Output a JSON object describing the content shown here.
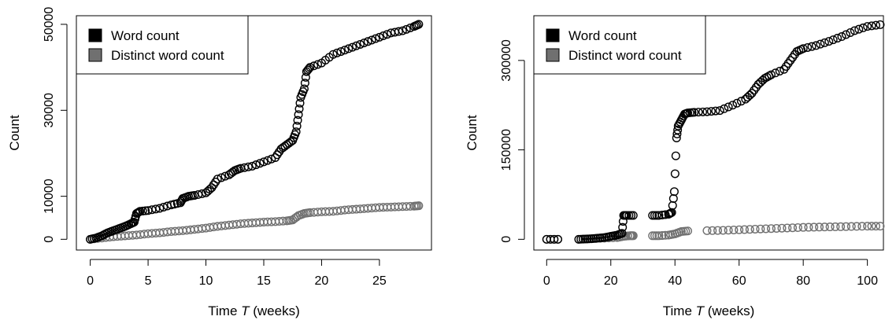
{
  "chart_data": [
    {
      "type": "scatter",
      "xlabel_prefix": "Time ",
      "xlabel_var": "T",
      "xlabel_suffix": " (weeks)",
      "ylabel": "Count",
      "xlim": [
        -1.2,
        29.5
      ],
      "ylim": [
        -2500,
        52000
      ],
      "xticks": [
        0,
        5,
        10,
        15,
        20,
        25
      ],
      "yticks": [
        0,
        10000,
        30000,
        50000
      ],
      "ytick_labels": [
        "0",
        "10000",
        "30000",
        "50000"
      ],
      "grid": false,
      "legend_position": "top-left",
      "series": [
        {
          "name": "Word count",
          "color": "#000000",
          "points": [
            [
              0.0,
              0
            ],
            [
              0.5,
              300
            ],
            [
              1.0,
              800
            ],
            [
              1.5,
              1500
            ],
            [
              2.0,
              2000
            ],
            [
              2.5,
              2500
            ],
            [
              3.0,
              3000
            ],
            [
              3.5,
              3600
            ],
            [
              3.8,
              4000
            ],
            [
              4.0,
              6000
            ],
            [
              4.3,
              6500
            ],
            [
              5.0,
              6700
            ],
            [
              6.0,
              7200
            ],
            [
              7.0,
              8000
            ],
            [
              7.8,
              8500
            ],
            [
              8.0,
              9500
            ],
            [
              8.5,
              10000
            ],
            [
              9.0,
              10200
            ],
            [
              10.0,
              10800
            ],
            [
              10.5,
              12000
            ],
            [
              11.0,
              14000
            ],
            [
              12.0,
              15000
            ],
            [
              12.5,
              16000
            ],
            [
              13.0,
              16500
            ],
            [
              14.0,
              17000
            ],
            [
              15.0,
              18000
            ],
            [
              16.0,
              19000
            ],
            [
              16.5,
              21000
            ],
            [
              17.0,
              22000
            ],
            [
              17.5,
              23000
            ],
            [
              17.8,
              25000
            ],
            [
              18.0,
              29000
            ],
            [
              18.2,
              33000
            ],
            [
              18.5,
              35000
            ],
            [
              18.7,
              39000
            ],
            [
              19.0,
              40000
            ],
            [
              20.0,
              41000
            ],
            [
              21.0,
              43000
            ],
            [
              22.0,
              44000
            ],
            [
              23.0,
              45000
            ],
            [
              24.0,
              46000
            ],
            [
              25.0,
              47000
            ],
            [
              26.0,
              48000
            ],
            [
              27.0,
              48500
            ],
            [
              28.0,
              49500
            ],
            [
              28.4,
              50000
            ]
          ]
        },
        {
          "name": "Distinct word count",
          "color": "#707070",
          "points": [
            [
              0.0,
              0
            ],
            [
              1.0,
              300
            ],
            [
              2.0,
              600
            ],
            [
              3.0,
              800
            ],
            [
              4.0,
              1000
            ],
            [
              5.0,
              1300
            ],
            [
              6.0,
              1500
            ],
            [
              7.0,
              1800
            ],
            [
              8.0,
              2000
            ],
            [
              9.0,
              2300
            ],
            [
              10.0,
              2600
            ],
            [
              11.0,
              3000
            ],
            [
              12.0,
              3300
            ],
            [
              13.0,
              3600
            ],
            [
              14.0,
              3800
            ],
            [
              15.0,
              4000
            ],
            [
              16.0,
              4100
            ],
            [
              17.0,
              4300
            ],
            [
              17.5,
              4500
            ],
            [
              18.0,
              5500
            ],
            [
              18.5,
              6000
            ],
            [
              19.0,
              6200
            ],
            [
              20.0,
              6400
            ],
            [
              21.0,
              6500
            ],
            [
              22.0,
              6800
            ],
            [
              23.0,
              7000
            ],
            [
              24.0,
              7200
            ],
            [
              25.0,
              7400
            ],
            [
              26.0,
              7500
            ],
            [
              27.0,
              7600
            ],
            [
              28.0,
              7700
            ],
            [
              28.4,
              7800
            ]
          ]
        }
      ]
    },
    {
      "type": "scatter",
      "xlabel_prefix": "Time ",
      "xlabel_var": "T",
      "xlabel_suffix": " (weeks)",
      "ylabel": "Count",
      "xlim": [
        -4,
        105
      ],
      "ylim": [
        -18000,
        375000
      ],
      "xticks": [
        0,
        20,
        40,
        60,
        80,
        100
      ],
      "yticks": [
        0,
        150000,
        300000
      ],
      "ytick_labels": [
        "0",
        "150000",
        "300000"
      ],
      "grid": false,
      "legend_position": "top-left",
      "series": [
        {
          "name": "Word count",
          "color": "#000000",
          "points": [
            [
              0.0,
              0
            ],
            [
              3.5,
              0
            ],
            [
              10.0,
              0
            ],
            [
              12.0,
              500
            ],
            [
              14.0,
              1000
            ],
            [
              16.0,
              2000
            ],
            [
              18.0,
              3000
            ],
            [
              20.0,
              5000
            ],
            [
              22.0,
              7000
            ],
            [
              23.5,
              10000
            ],
            [
              24.0,
              40000
            ],
            [
              25.0,
              40000
            ],
            [
              27.0,
              40000
            ],
            [
              33.0,
              40000
            ],
            [
              35.0,
              40000
            ],
            [
              38.0,
              42000
            ],
            [
              39.0,
              45000
            ],
            [
              39.8,
              80000
            ],
            [
              40.5,
              170000
            ],
            [
              41.0,
              190000
            ],
            [
              42.0,
              200000
            ],
            [
              43.0,
              210000
            ],
            [
              44.0,
              212000
            ],
            [
              46.0,
              213000
            ],
            [
              50.0,
              214000
            ],
            [
              54.0,
              216000
            ],
            [
              58.0,
              225000
            ],
            [
              62.0,
              235000
            ],
            [
              64.0,
              245000
            ],
            [
              66.0,
              260000
            ],
            [
              68.0,
              270000
            ],
            [
              70.0,
              276000
            ],
            [
              74.0,
              285000
            ],
            [
              76.0,
              300000
            ],
            [
              78.0,
              315000
            ],
            [
              80.0,
              320000
            ],
            [
              84.0,
              325000
            ],
            [
              88.0,
              332000
            ],
            [
              92.0,
              340000
            ],
            [
              96.0,
              350000
            ],
            [
              100.0,
              357000
            ],
            [
              104.0,
              360000
            ]
          ]
        },
        {
          "name": "Distinct word count",
          "color": "#707070",
          "points": [
            [
              0.0,
              0
            ],
            [
              3.5,
              0
            ],
            [
              10.0,
              0
            ],
            [
              14.0,
              1000
            ],
            [
              18.0,
              2000
            ],
            [
              22.0,
              3000
            ],
            [
              24.0,
              5000
            ],
            [
              26.0,
              6000
            ],
            [
              27.0,
              6000
            ],
            [
              33.0,
              6000
            ],
            [
              35.0,
              6000
            ],
            [
              38.0,
              7000
            ],
            [
              40.0,
              9000
            ],
            [
              42.0,
              13000
            ],
            [
              44.0,
              14000
            ],
            [
              50.0,
              14500
            ],
            [
              55.0,
              15000
            ],
            [
              60.0,
              16000
            ],
            [
              65.0,
              17000
            ],
            [
              70.0,
              18000
            ],
            [
              75.0,
              19000
            ],
            [
              80.0,
              20000
            ],
            [
              85.0,
              20500
            ],
            [
              90.0,
              21000
            ],
            [
              95.0,
              21500
            ],
            [
              100.0,
              22000
            ],
            [
              104.0,
              22000
            ]
          ]
        }
      ]
    }
  ]
}
